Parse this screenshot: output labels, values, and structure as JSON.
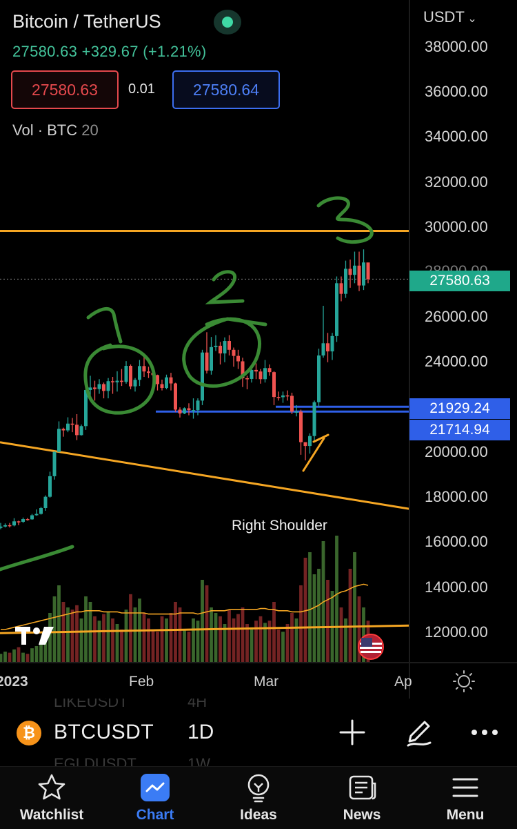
{
  "header": {
    "title": "Bitcoin / TetherUS",
    "last_price": "27580.63",
    "change": "+329.67 (+1.21%)",
    "sell_price": "27580.63",
    "spread": "0.01",
    "buy_price": "27580.64",
    "volume_label": "Vol · BTC",
    "volume_length": "20",
    "status": "market-open"
  },
  "price_axis": {
    "currency": "USDT",
    "labels": [
      "38000.00",
      "36000.00",
      "34000.00",
      "32000.00",
      "30000.00",
      "28000.00",
      "26000.00",
      "24000.00",
      "20000.00",
      "18000.00",
      "16000.00",
      "14000.00",
      "12000.00"
    ],
    "price_tag": "27580.63",
    "level_tags": [
      "21929.24",
      "21714.94"
    ]
  },
  "time_axis": {
    "labels": [
      "2023",
      "Feb",
      "Mar",
      "Ap"
    ]
  },
  "annotations": {
    "right_shoulder": "Right Shoulder",
    "marks": [
      "1",
      "2",
      "3"
    ]
  },
  "chart_data": {
    "type": "candlestick",
    "title": "Bitcoin / TetherUS",
    "interval": "1D",
    "ylabel": "USDT",
    "ylim": [
      11000,
      39000
    ],
    "x": [
      "2023-01-01",
      "2023-01-02",
      "2023-01-03",
      "2023-01-04",
      "2023-01-05",
      "2023-01-06",
      "2023-01-07",
      "2023-01-08",
      "2023-01-09",
      "2023-01-10",
      "2023-01-11",
      "2023-01-12",
      "2023-01-13",
      "2023-01-14",
      "2023-01-15",
      "2023-01-16",
      "2023-01-17",
      "2023-01-18",
      "2023-01-19",
      "2023-01-20",
      "2023-01-21",
      "2023-01-22",
      "2023-01-23",
      "2023-01-24",
      "2023-01-25",
      "2023-01-26",
      "2023-01-27",
      "2023-01-28",
      "2023-01-29",
      "2023-01-30",
      "2023-01-31",
      "2023-02-01",
      "2023-02-02",
      "2023-02-03",
      "2023-02-04",
      "2023-02-05",
      "2023-02-06",
      "2023-02-07",
      "2023-02-08",
      "2023-02-09",
      "2023-02-10",
      "2023-02-11",
      "2023-02-12",
      "2023-02-13",
      "2023-02-14",
      "2023-02-15",
      "2023-02-16",
      "2023-02-17",
      "2023-02-18",
      "2023-02-19",
      "2023-02-20",
      "2023-02-21",
      "2023-02-22",
      "2023-02-23",
      "2023-02-24",
      "2023-02-25",
      "2023-02-26",
      "2023-02-27",
      "2023-02-28",
      "2023-03-01",
      "2023-03-02",
      "2023-03-03",
      "2023-03-04",
      "2023-03-05",
      "2023-03-06",
      "2023-03-07",
      "2023-03-08",
      "2023-03-09",
      "2023-03-10",
      "2023-03-11",
      "2023-03-12",
      "2023-03-13",
      "2023-03-14",
      "2023-03-15",
      "2023-03-16",
      "2023-03-17",
      "2023-03-18",
      "2023-03-19",
      "2023-03-20",
      "2023-03-21",
      "2023-03-22",
      "2023-03-23",
      "2023-03-24"
    ],
    "close": [
      16620,
      16680,
      16670,
      16850,
      16830,
      16950,
      16940,
      17120,
      17180,
      17440,
      17940,
      18850,
      19930,
      20950,
      20880,
      21180,
      21130,
      20670,
      21070,
      22670,
      22780,
      22710,
      22930,
      22630,
      23060,
      23010,
      23080,
      23030,
      23740,
      22830,
      23120,
      23730,
      23490,
      23430,
      23330,
      22930,
      22760,
      23230,
      22960,
      21800,
      21630,
      21860,
      21780,
      21780,
      22200,
      24330,
      23530,
      24570,
      24630,
      24290,
      24840,
      24450,
      24180,
      23940,
      23190,
      23160,
      23560,
      23490,
      23150,
      23640,
      23460,
      22360,
      22350,
      22430,
      22410,
      21710,
      21710,
      20360,
      20190,
      20630,
      22130,
      24200,
      24740,
      24380,
      25060,
      27400,
      26930,
      28040,
      27770,
      28180,
      27300,
      28320,
      27580
    ],
    "high": [
      16780,
      16760,
      16780,
      16990,
      16880,
      17020,
      17000,
      17180,
      17380,
      17490,
      18000,
      19050,
      19950,
      21280,
      21000,
      21460,
      21430,
      21600,
      21140,
      22750,
      23300,
      23080,
      23150,
      23000,
      23200,
      23250,
      23500,
      23600,
      23950,
      23800,
      23200,
      24000,
      24200,
      23700,
      23500,
      23350,
      23130,
      23350,
      23430,
      22990,
      21900,
      21900,
      22080,
      22300,
      22300,
      24450,
      25230,
      25020,
      25100,
      24800,
      25000,
      25100,
      24550,
      24450,
      24100,
      23300,
      23600,
      23850,
      23600,
      24000,
      23800,
      23500,
      22600,
      22600,
      22650,
      22550,
      22000,
      21800,
      20300,
      20750,
      22200,
      24500,
      26400,
      25200,
      25200,
      27700,
      27700,
      28400,
      28450,
      28800,
      28800,
      28900,
      28100
    ],
    "low": [
      16500,
      16580,
      16580,
      16630,
      16680,
      16780,
      16880,
      16920,
      17100,
      17150,
      17320,
      17900,
      18700,
      19900,
      20600,
      20800,
      20800,
      20450,
      20650,
      20900,
      22350,
      22200,
      22500,
      22300,
      22300,
      22500,
      22600,
      22850,
      22950,
      22700,
      22600,
      22850,
      23250,
      23200,
      22900,
      22650,
      22650,
      22700,
      22650,
      21700,
      21450,
      21600,
      21550,
      21400,
      21550,
      22000,
      23400,
      23350,
      24400,
      23800,
      23900,
      24200,
      23700,
      23600,
      22800,
      22700,
      23000,
      23150,
      22950,
      23000,
      23300,
      22000,
      22200,
      22100,
      22200,
      21600,
      21500,
      19800,
      19550,
      19850,
      20400,
      21900,
      24100,
      23900,
      24000,
      24800,
      26600,
      26750,
      27200,
      27400,
      27050,
      27100,
      27400
    ],
    "volume_series": {
      "name": "Vol · BTC",
      "ma_length": 20,
      "values": [
        8,
        10,
        9,
        12,
        14,
        9,
        8,
        13,
        15,
        18,
        25,
        45,
        60,
        70,
        55,
        50,
        48,
        52,
        40,
        60,
        55,
        42,
        38,
        44,
        46,
        40,
        35,
        30,
        48,
        62,
        50,
        58,
        45,
        40,
        30,
        28,
        42,
        40,
        45,
        55,
        50,
        30,
        28,
        40,
        38,
        75,
        70,
        50,
        45,
        42,
        35,
        48,
        40,
        44,
        50,
        35,
        32,
        38,
        42,
        36,
        38,
        55,
        30,
        28,
        35,
        45,
        40,
        70,
        95,
        100,
        80,
        85,
        110,
        75,
        65,
        115,
        50,
        40,
        85,
        100,
        60,
        50,
        38
      ],
      "ma": [
        30,
        30,
        31,
        32,
        33,
        34,
        35,
        36,
        37,
        38,
        39,
        40,
        41,
        42,
        43,
        44,
        45,
        46,
        46,
        47,
        47,
        47,
        47,
        46,
        46,
        46,
        46,
        45,
        45,
        45,
        45,
        45,
        45,
        44,
        44,
        44,
        44,
        44,
        44,
        44,
        45,
        45,
        45,
        45,
        44,
        45,
        46,
        47,
        47,
        47,
        47,
        48,
        48,
        48,
        48,
        48,
        48,
        48,
        49,
        49,
        48,
        48,
        47,
        47,
        47,
        46,
        46,
        46,
        47,
        48,
        50,
        52,
        55,
        57,
        59,
        62,
        64,
        65,
        67,
        69,
        70,
        71,
        70
      ]
    },
    "levels": [
      {
        "type": "horizontal",
        "price": 29720
      },
      {
        "type": "horizontal",
        "price": 21929.24
      },
      {
        "type": "horizontal",
        "price": 21714.94
      },
      {
        "type": "trendline",
        "from": {
          "x": "2023-01-01",
          "y": 20350
        },
        "to": {
          "x": "2023-03-24",
          "y": 17700
        }
      },
      {
        "type": "trendline",
        "from": {
          "x": "2023-01-01",
          "y": 11900
        },
        "to": {
          "x": "2023-03-24",
          "y": 12200
        }
      }
    ],
    "last_price": 27580.63
  },
  "toolbar": {
    "symbol": "BTCUSDT",
    "interval": "1D",
    "ghost_symbols": [
      "LIKEUSDT",
      "EGLDUSDT"
    ],
    "ghost_intervals": [
      "4H",
      "1W"
    ],
    "add_icon": "plus-icon",
    "draw_icon": "pen-icon",
    "more_icon": "more-icon"
  },
  "nav": {
    "items": [
      {
        "label": "Watchlist",
        "icon": "star-icon"
      },
      {
        "label": "Chart",
        "icon": "chart-icon"
      },
      {
        "label": "Ideas",
        "icon": "lightbulb-icon"
      },
      {
        "label": "News",
        "icon": "news-icon"
      },
      {
        "label": "Menu",
        "icon": "menu-icon"
      }
    ],
    "active": "Chart"
  },
  "colors": {
    "up": "#43a047",
    "down": "#e5494d",
    "up_candle": "#26a69a",
    "down_candle": "#ef5350",
    "accent": "#3b7cf5",
    "level_orange": "#f5a623",
    "annotation_green": "#3a8a34"
  }
}
